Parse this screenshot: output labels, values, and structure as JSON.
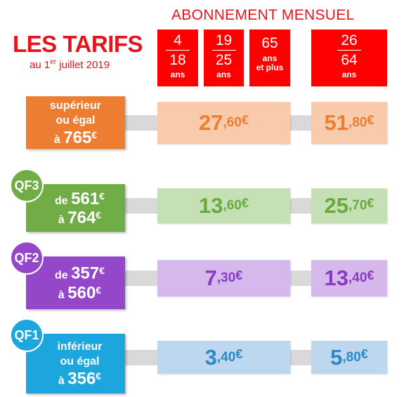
{
  "header": {
    "title": "LES TARIFS",
    "subtitle": {
      "prefix": "au 1",
      "superscript": "er",
      "suffix": " juillet 2019"
    },
    "section_title": "ABONNEMENT MENSUEL"
  },
  "columns": [
    {
      "lines": [
        "4",
        "18",
        "ans"
      ]
    },
    {
      "lines": [
        "19",
        "25",
        "ans"
      ]
    },
    {
      "lines": [
        "65",
        "ans",
        "et plus"
      ]
    },
    {
      "lines": [
        "26",
        "64",
        "ans"
      ]
    }
  ],
  "rows": [
    {
      "lines": [
        "supérieur",
        "ou égal",
        {
          "text": "à",
          "amount": "765",
          "currency": "€"
        }
      ],
      "prices": [
        {
          "whole": "27",
          "decimal": ",60",
          "currency": "€"
        },
        {
          "whole": "51",
          "decimal": ",80",
          "currency": "€"
        }
      ]
    },
    {
      "badge": "QF3",
      "lines": [
        {
          "text": "de",
          "amount": "561",
          "currency": "€"
        },
        {
          "text": "à",
          "amount": "764",
          "currency": "€"
        }
      ],
      "prices": [
        {
          "whole": "13",
          "decimal": ",60",
          "currency": "€"
        },
        {
          "whole": "25",
          "decimal": ",70",
          "currency": "€"
        }
      ]
    },
    {
      "badge": "QF2",
      "lines": [
        {
          "text": "de",
          "amount": "357",
          "currency": "€"
        },
        {
          "text": "à",
          "amount": "560",
          "currency": "€"
        }
      ],
      "prices": [
        {
          "whole": "7",
          "decimal": ",30",
          "currency": "€"
        },
        {
          "whole": "13",
          "decimal": ",40",
          "currency": "€"
        }
      ]
    },
    {
      "badge": "QF1",
      "lines": [
        "inférieur",
        "ou égal",
        {
          "text": "à",
          "amount": "356",
          "currency": "€"
        }
      ],
      "prices": [
        {
          "whole": "3",
          "decimal": ",40",
          "currency": "€"
        },
        {
          "whole": "5",
          "decimal": ",80",
          "currency": "€"
        }
      ]
    }
  ]
}
